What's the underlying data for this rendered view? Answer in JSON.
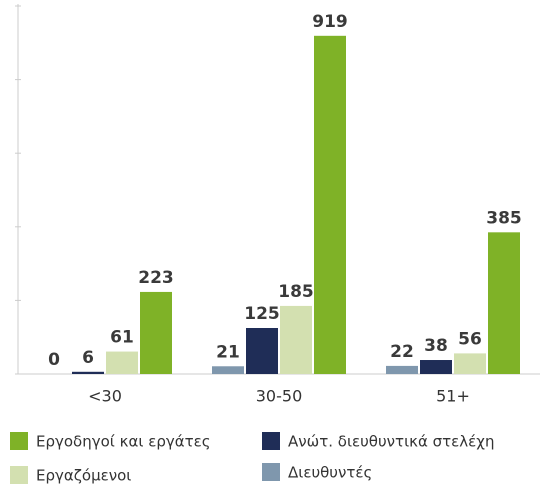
{
  "chart_data": {
    "type": "bar",
    "categories": [
      "<30",
      "30-50",
      "51+"
    ],
    "series": [
      {
        "name": "Διευθυντές",
        "color": "#7f97ad",
        "values": [
          0,
          21,
          22
        ]
      },
      {
        "name": "Ανώτ. διευθυντικά στελέχη",
        "color": "#1f2d57",
        "values": [
          6,
          125,
          38
        ]
      },
      {
        "name": "Εργαζόμενοι",
        "color": "#d3e0b0",
        "values": [
          61,
          185,
          56
        ]
      },
      {
        "name": "Εργοδηγοί και εργάτες",
        "color": "#7fb227",
        "values": [
          223,
          919,
          385
        ]
      }
    ],
    "ylim": [
      0,
      1000
    ],
    "yticks": [
      0,
      200,
      400,
      600,
      800,
      1000
    ]
  }
}
